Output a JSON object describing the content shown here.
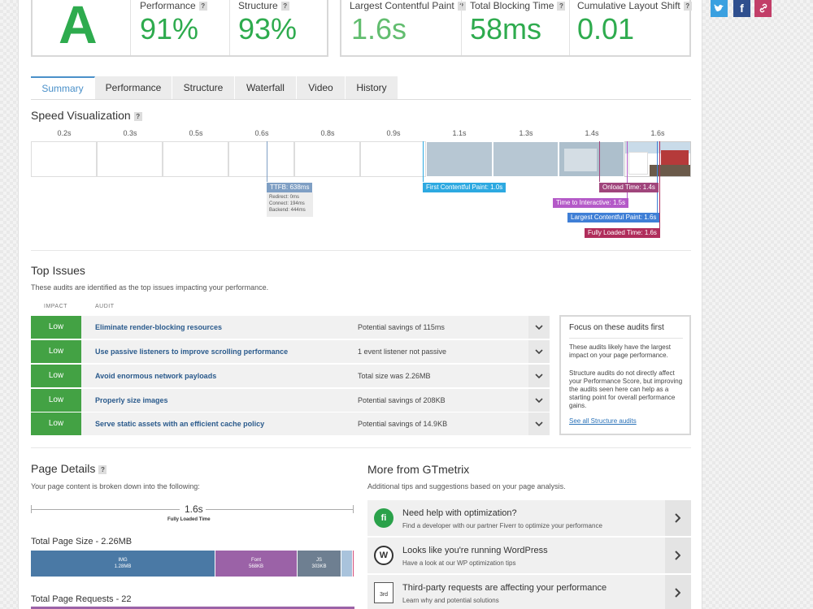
{
  "colors": {
    "grade_green": "#2eab4e",
    "accent_blue": "#4a90c9",
    "low_green": "#43a244",
    "marker_ttfb": "#7f9fc4",
    "marker_fcp": "#2da9e1",
    "marker_onload": "#a0457c",
    "marker_tti": "#b45ac8",
    "marker_lcp": "#3f7fd6",
    "marker_fully": "#b02d5b",
    "img": "#4a79a5",
    "font": "#9b62a7",
    "js": "#6e7f91"
  },
  "grade": {
    "letter": "A"
  },
  "scores": {
    "performance": {
      "label": "Performance",
      "value": "91%"
    },
    "structure": {
      "label": "Structure",
      "value": "93%"
    }
  },
  "web_vitals": {
    "lcp": {
      "label": "Largest Contentful Paint",
      "value": "1.6s"
    },
    "tbt": {
      "label": "Total Blocking Time",
      "value": "58ms"
    },
    "cls": {
      "label": "Cumulative Layout Shift",
      "value": "0.01"
    }
  },
  "social": {
    "twitter_icon": "twitter-icon",
    "facebook_icon": "facebook-icon",
    "link_icon": "link-icon",
    "facebook_glyph": "f"
  },
  "tabs": [
    "Summary",
    "Performance",
    "Structure",
    "Waterfall",
    "Video",
    "History"
  ],
  "help_glyph": "?",
  "speed_visualization": {
    "title": "Speed Visualization",
    "ticks": [
      "0.2s",
      "0.3s",
      "0.5s",
      "0.6s",
      "0.8s",
      "0.9s",
      "1.1s",
      "1.3s",
      "1.4s",
      "1.6s"
    ],
    "markers": {
      "ttfb": "TTFB: 638ms",
      "ttfb_redirect": "Redirect: 0ms",
      "ttfb_connect": "Connect: 194ms",
      "ttfb_backend": "Backend: 444ms",
      "fcp": "First Contentful Paint: 1.0s",
      "onload": "Onload Time: 1.4s",
      "tti": "Time to Interactive: 1.5s",
      "lcp": "Largest Contentful Paint: 1.6s",
      "fully_loaded": "Fully Loaded Time: 1.6s"
    }
  },
  "top_issues": {
    "title": "Top Issues",
    "subtitle": "These audits are identified as the top issues impacting your performance.",
    "col_impact": "IMPACT",
    "col_audit": "AUDIT",
    "rows": [
      {
        "impact": "Low",
        "audit": "Eliminate render-blocking resources",
        "info": "Potential savings of 115ms"
      },
      {
        "impact": "Low",
        "audit": "Use passive listeners to improve scrolling performance",
        "info": "1 event listener not passive"
      },
      {
        "impact": "Low",
        "audit": "Avoid enormous network payloads",
        "info": "Total size was 2.26MB"
      },
      {
        "impact": "Low",
        "audit": "Properly size images",
        "info": "Potential savings of 208KB"
      },
      {
        "impact": "Low",
        "audit": "Serve static assets with an efficient cache policy",
        "info": "Potential savings of 14.9KB"
      }
    ],
    "focus": {
      "title": "Focus on these audits first",
      "p1": "These audits likely have the largest impact on your page performance.",
      "p2": "Structure audits do not directly affect your Performance Score, but improving the audits seen here can help as a starting point for overall performance gains.",
      "link": "See all Structure audits"
    }
  },
  "page_details": {
    "title": "Page Details",
    "subtitle": "Your page content is broken down into the following:",
    "fully_loaded_value": "1.6s",
    "fully_loaded_label": "Fully Loaded Time",
    "total_size_label": "Total Page Size - 2.26MB",
    "total_requests_label": "Total Page Requests - 22"
  },
  "more": {
    "title": "More from GTmetrix",
    "subtitle": "Additional tips and suggestions based on your page analysis.",
    "items": [
      {
        "icon": "fiverr-icon",
        "glyph": "fi",
        "title": "Need help with optimization?",
        "sub": "Find a developer with our partner Fiverr to optimize your performance"
      },
      {
        "icon": "wordpress-icon",
        "glyph": "W",
        "title": "Looks like you're running WordPress",
        "sub": "Have a look at our WP optimization tips"
      },
      {
        "icon": "third-party-icon",
        "glyph": "3rd",
        "title": "Third-party requests are affecting your performance",
        "sub": "Learn why and potential solutions"
      }
    ]
  },
  "chart_data": {
    "type": "bar",
    "title": "Total Page Size - 2.26MB",
    "orientation": "horizontal-stacked",
    "unit": "KB",
    "series": [
      {
        "name": "IMG",
        "label": "1.28MB",
        "values": [
          1280
        ]
      },
      {
        "name": "Font",
        "label": "568KB",
        "values": [
          568
        ]
      },
      {
        "name": "JS",
        "label": "303KB",
        "values": [
          303
        ]
      },
      {
        "name": "Other",
        "label": "",
        "values": [
          80
        ]
      },
      {
        "name": "Other",
        "label": "",
        "values": [
          12
        ]
      }
    ]
  }
}
